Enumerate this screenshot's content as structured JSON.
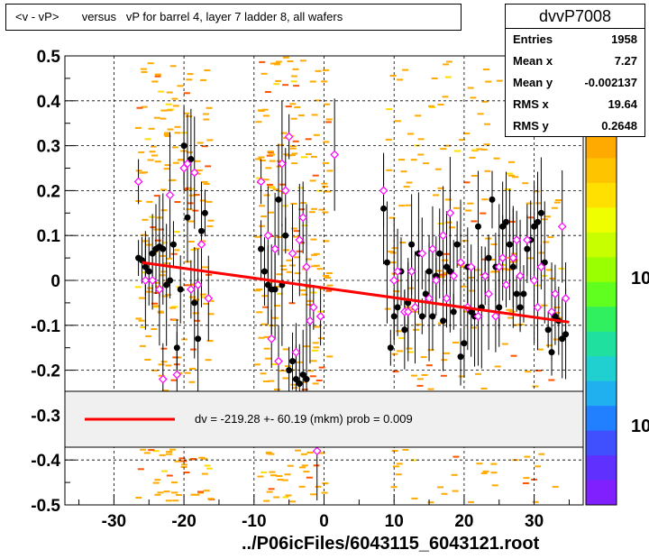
{
  "title": "<v - vP>       versus   vP for barrel 4, layer 7 ladder 8, all wafers",
  "stats": {
    "name": "dvvP7008",
    "rows": [
      {
        "label": "Entries",
        "value": "1958"
      },
      {
        "label": "Mean x",
        "value": "7.27"
      },
      {
        "label": "Mean y",
        "value": "-0.002137"
      },
      {
        "label": "RMS x",
        "value": "19.64"
      },
      {
        "label": "RMS y",
        "value": "0.2648"
      }
    ]
  },
  "x_axis_title": "../P06icFiles/6043115_6043121.root",
  "fit_label": "dv = -219.28 +- 60.19 (mkm) prob = 0.009",
  "palette_labels": [
    "10",
    "10"
  ],
  "colors": {
    "fit_line": "#ff0000",
    "black_markers": "#000000",
    "open_markers": "#ff00ff",
    "heat": "#ffaa00"
  },
  "chart_data": {
    "type": "scatter",
    "xlim": [
      -37,
      37
    ],
    "ylim": [
      -0.5,
      0.5
    ],
    "x_ticks": [
      -30,
      -20,
      -10,
      0,
      10,
      20,
      30
    ],
    "y_ticks": [
      0.5,
      0.4,
      0.3,
      0.2,
      0.1,
      0,
      -0.1,
      -0.2,
      -0.3,
      -0.4,
      -0.5
    ],
    "x_tick_labels": [
      "-30",
      "-20",
      "-10",
      "0",
      "10",
      "20",
      "30"
    ],
    "y_tick_labels": [
      "0.5",
      "0.4",
      "0.3",
      "0.2",
      "0.1",
      "0",
      "-0.1",
      "-0.2",
      "-0.3",
      "-0.4",
      "-0.5"
    ],
    "grid": true,
    "fit_line": {
      "x": [
        -26,
        35
      ],
      "y": [
        0.04,
        -0.093
      ]
    },
    "black_points": [
      [
        -26.5,
        0.05
      ],
      [
        -26,
        0.045
      ],
      [
        -25.5,
        0.03
      ],
      [
        -25,
        0.02
      ],
      [
        -24.5,
        0.06
      ],
      [
        -24,
        0.07
      ],
      [
        -23.5,
        0.075
      ],
      [
        -23,
        0.07
      ],
      [
        -22.5,
        -0.01
      ],
      [
        -22,
        0.0
      ],
      [
        -21.5,
        0.08
      ],
      [
        -21,
        -0.15
      ],
      [
        -20.5,
        -0.02
      ],
      [
        -20,
        0.3
      ],
      [
        -19.5,
        0.14
      ],
      [
        -19,
        0.27
      ],
      [
        -18.5,
        -0.05
      ],
      [
        -18,
        -0.13
      ],
      [
        -17.5,
        0.11
      ],
      [
        -17,
        0.15
      ],
      [
        -9,
        0.07
      ],
      [
        -8.5,
        0.02
      ],
      [
        -8,
        -0.01
      ],
      [
        -7.5,
        -0.02
      ],
      [
        -7,
        -0.02
      ],
      [
        -6.5,
        0.18
      ],
      [
        -6,
        -0.01
      ],
      [
        -5.5,
        0.1
      ],
      [
        -5,
        -0.2
      ],
      [
        -4.5,
        -0.18
      ],
      [
        -4,
        -0.22
      ],
      [
        -3.5,
        -0.23
      ],
      [
        -3,
        -0.21
      ],
      [
        -2.5,
        -0.22
      ],
      [
        8.5,
        0.16
      ],
      [
        9,
        0.04
      ],
      [
        9.5,
        -0.15
      ],
      [
        10,
        -0.08
      ],
      [
        10.5,
        -0.06
      ],
      [
        11,
        0.02
      ],
      [
        11.5,
        -0.11
      ],
      [
        12,
        -0.05
      ],
      [
        12.5,
        0.08
      ],
      [
        13,
        -0.06
      ],
      [
        13.5,
        0.06
      ],
      [
        14,
        -0.08
      ],
      [
        14.5,
        -0.03
      ],
      [
        15,
        0.02
      ],
      [
        15.5,
        -0.08
      ],
      [
        16,
        0.01
      ],
      [
        16.5,
        0.06
      ],
      [
        17,
        -0.09
      ],
      [
        17.5,
        0.03
      ],
      [
        18,
        0.02
      ],
      [
        18.5,
        -0.07
      ],
      [
        19,
        0.08
      ],
      [
        19.5,
        -0.17
      ],
      [
        20,
        -0.14
      ],
      [
        20.5,
        0.03
      ],
      [
        21,
        -0.07
      ],
      [
        21.5,
        -0.08
      ],
      [
        22,
        0.12
      ],
      [
        22.5,
        -0.06
      ],
      [
        23,
        0.01
      ],
      [
        23.5,
        0.05
      ],
      [
        24,
        0.18
      ],
      [
        24.5,
        0.03
      ],
      [
        25,
        -0.06
      ],
      [
        25.5,
        0.12
      ],
      [
        26,
        0.13
      ],
      [
        26.5,
        0.08
      ],
      [
        27,
        0.03
      ],
      [
        27.5,
        -0.03
      ],
      [
        28,
        -0.06
      ],
      [
        28.5,
        -0.03
      ],
      [
        29,
        0.07
      ],
      [
        29.5,
        0.09
      ],
      [
        30,
        0.12
      ],
      [
        30.5,
        0.13
      ],
      [
        31,
        0.15
      ],
      [
        31.5,
        0.04
      ],
      [
        32,
        -0.11
      ],
      [
        32.5,
        -0.16
      ],
      [
        33,
        -0.08
      ],
      [
        33.5,
        -0.09
      ],
      [
        34,
        -0.13
      ],
      [
        34.5,
        -0.12
      ]
    ],
    "open_points": [
      [
        -26.5,
        0.22
      ],
      [
        -25.5,
        0.0
      ],
      [
        -24.5,
        0.0
      ],
      [
        -23.5,
        -0.02
      ],
      [
        -23,
        -0.22
      ],
      [
        -22,
        0.19
      ],
      [
        -21,
        -0.21
      ],
      [
        -20,
        0.25
      ],
      [
        -19.5,
        0.26
      ],
      [
        -19,
        -0.02
      ],
      [
        -18.5,
        0.24
      ],
      [
        -18,
        -0.01
      ],
      [
        -17.5,
        0.08
      ],
      [
        -16.5,
        -0.04
      ],
      [
        -9,
        0.22
      ],
      [
        -8,
        0.1
      ],
      [
        -7.5,
        -0.13
      ],
      [
        -7,
        0.07
      ],
      [
        -6.5,
        -0.18
      ],
      [
        -6,
        0.26
      ],
      [
        -5.5,
        0.2
      ],
      [
        -5,
        0.32
      ],
      [
        -4.5,
        0.06
      ],
      [
        -4,
        -0.16
      ],
      [
        -3.5,
        0.09
      ],
      [
        -3,
        0.14
      ],
      [
        -2.5,
        0.03
      ],
      [
        -2,
        -0.09
      ],
      [
        -1.5,
        -0.06
      ],
      [
        -1,
        -0.38
      ],
      [
        -0.5,
        -0.08
      ],
      [
        1.5,
        0.28
      ],
      [
        8.5,
        0.2
      ],
      [
        10,
        0.0
      ],
      [
        10.5,
        0.02
      ],
      [
        11.5,
        -0.07
      ],
      [
        12,
        -0.07
      ],
      [
        12.5,
        0.02
      ],
      [
        13,
        -0.06
      ],
      [
        14,
        0.06
      ],
      [
        15,
        -0.04
      ],
      [
        15.5,
        0.07
      ],
      [
        16,
        0.0
      ],
      [
        17,
        0.1
      ],
      [
        17.5,
        -0.04
      ],
      [
        18,
        0.15
      ],
      [
        18.5,
        0.01
      ],
      [
        19.5,
        0.04
      ],
      [
        20.5,
        -0.06
      ],
      [
        21,
        0.03
      ],
      [
        22,
        -0.08
      ],
      [
        23,
        0.01
      ],
      [
        23.5,
        -0.03
      ],
      [
        24.5,
        -0.08
      ],
      [
        25,
        0.03
      ],
      [
        25.5,
        0.05
      ],
      [
        26,
        -0.01
      ],
      [
        27,
        0.05
      ],
      [
        27.5,
        0.09
      ],
      [
        28,
        0.01
      ],
      [
        29,
        0.09
      ],
      [
        30,
        0.0
      ],
      [
        30.5,
        -0.06
      ],
      [
        31,
        0.03
      ],
      [
        32.5,
        -0.07
      ],
      [
        33,
        -0.03
      ],
      [
        34,
        0.12
      ],
      [
        34.5,
        -0.04
      ]
    ]
  }
}
